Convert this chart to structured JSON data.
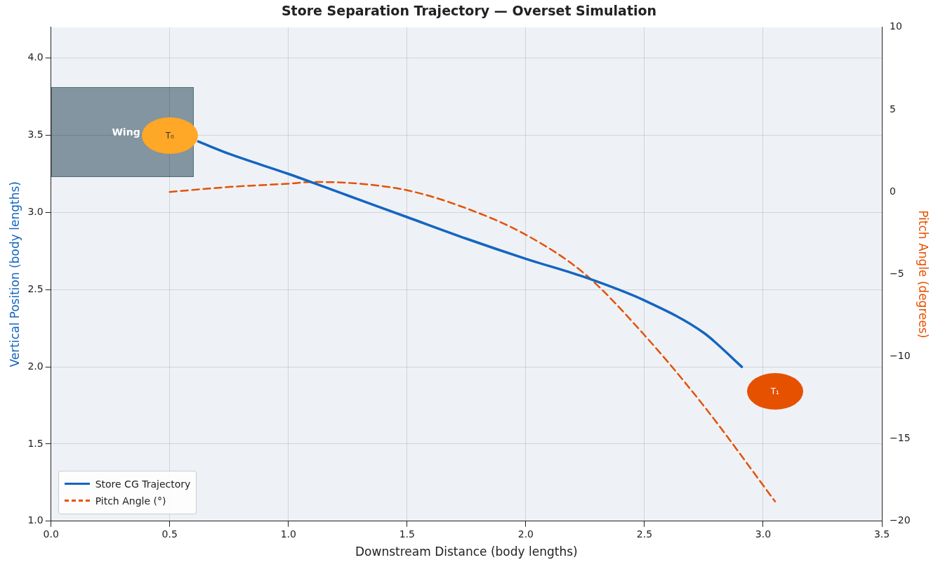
{
  "chart_data": {
    "type": "line",
    "title": "Store Separation Trajectory — Overset Simulation",
    "xlabel": "Downstream Distance (body lengths)",
    "ylabel": "Vertical Position (body lengths)",
    "y2label": "Pitch Angle (degrees)",
    "xlim": [
      0,
      3.5
    ],
    "xticks": [
      {
        "value": 0,
        "label": "0.0"
      },
      {
        "value": 0.5,
        "label": "0.5"
      },
      {
        "value": 1,
        "label": "1.0"
      },
      {
        "value": 1.5,
        "label": "1.5"
      },
      {
        "value": 2,
        "label": "2.0"
      },
      {
        "value": 2.5,
        "label": "2.5"
      },
      {
        "value": 3,
        "label": "3.0"
      },
      {
        "value": 3.5,
        "label": "3.5"
      }
    ],
    "ylim": [
      1,
      4.2
    ],
    "yticks": [
      {
        "value": 1,
        "label": "1.0"
      },
      {
        "value": 1.5,
        "label": "1.5"
      },
      {
        "value": 2,
        "label": "2.0"
      },
      {
        "value": 2.5,
        "label": "2.5"
      },
      {
        "value": 3,
        "label": "3.0"
      },
      {
        "value": 3.5,
        "label": "3.5"
      },
      {
        "value": 4,
        "label": "4.0"
      }
    ],
    "y2lim": [
      -20,
      10
    ],
    "y2ticks": [
      {
        "value": -20,
        "label": "−20"
      },
      {
        "value": -15,
        "label": "−15"
      },
      {
        "value": -10,
        "label": "−10"
      },
      {
        "value": -5,
        "label": "−5"
      },
      0,
      5,
      10
    ],
    "series": [
      {
        "name": "Store CG Trajectory",
        "color": "#1565c0",
        "line_style": "solid",
        "x": [
          0.62,
          0.75,
          1.0,
          1.25,
          1.5,
          1.75,
          2.0,
          2.25,
          2.5,
          2.75,
          2.91
        ],
        "values": [
          3.46,
          3.38,
          3.25,
          3.11,
          2.97,
          2.83,
          2.7,
          2.58,
          2.43,
          2.22,
          2.0
        ]
      },
      {
        "name": "Pitch Angle (°)",
        "color": "#e65100",
        "axis": "y2",
        "line_style": "dashed",
        "x": [
          0.5,
          0.75,
          1.0,
          1.1,
          1.25,
          1.5,
          1.75,
          2.0,
          2.25,
          2.5,
          2.75,
          3.05
        ],
        "values": [
          0,
          0.3,
          0.5,
          0.6,
          0.55,
          0.1,
          -1.0,
          -2.6,
          -5.0,
          -8.7,
          -13.0,
          -18.8
        ]
      }
    ],
    "annotations": [
      "Wing",
      "T₀",
      "T₁"
    ],
    "grid": true,
    "legend": "bottom left",
    "marker": "none"
  }
}
